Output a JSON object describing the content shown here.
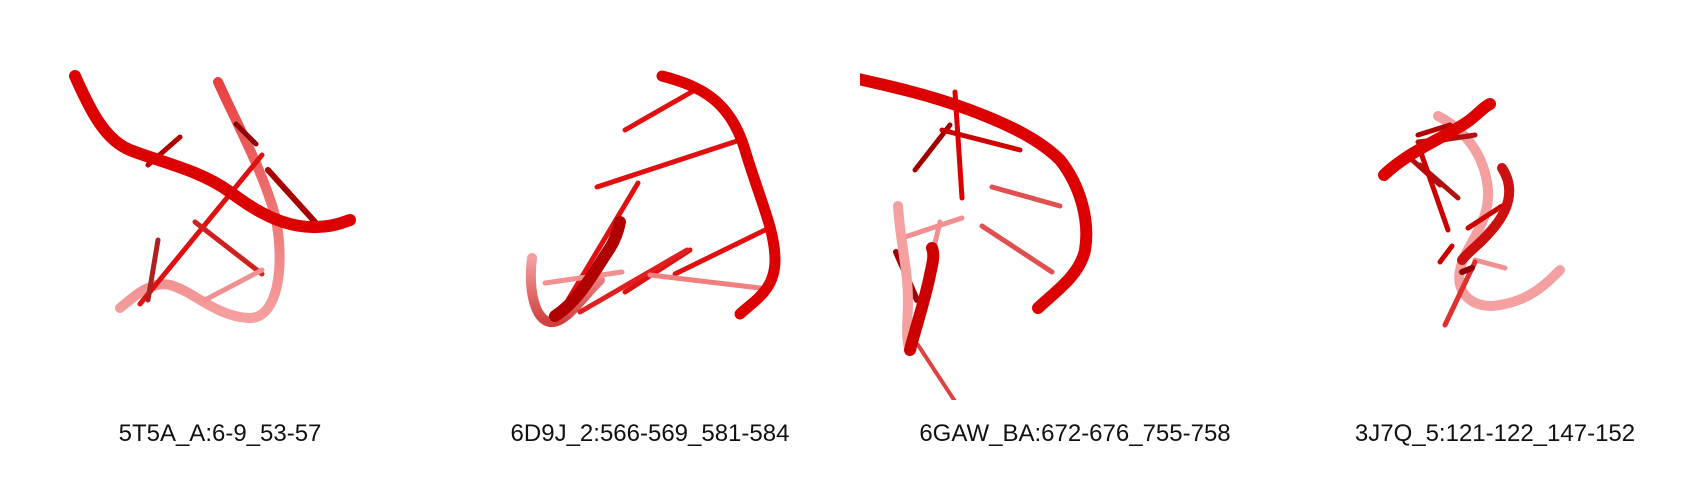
{
  "colors": {
    "backbone": "#e00000",
    "backbone_dark": "#8c0000",
    "backbone_faded": "#f08080",
    "background": "#ffffff"
  },
  "panels": [
    {
      "label": "5T5A_A:6-9_53-57"
    },
    {
      "label": "6D9J_2:566-569_581-584"
    },
    {
      "label": "6GAW_BA:672-676_755-758"
    },
    {
      "label": "3J7Q_5:121-122_147-152"
    }
  ]
}
